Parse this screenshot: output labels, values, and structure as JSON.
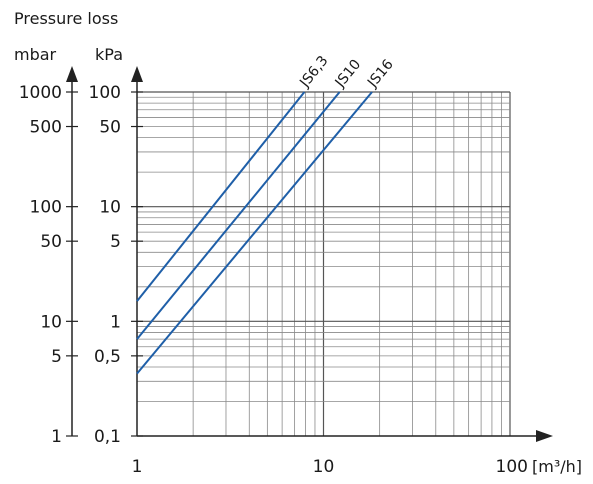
{
  "chart_data": {
    "type": "line",
    "title": "Pressure loss",
    "y_unit_left": "mbar",
    "y_unit_right": "kPa",
    "x_unit": "[m³/h]",
    "x_scale": "log",
    "y_scale": "log",
    "xlim": [
      1,
      100
    ],
    "ylim_kPa": [
      0.1,
      100
    ],
    "x_ticks": [
      {
        "value": 1,
        "label": "1"
      },
      {
        "value": 10,
        "label": "10"
      },
      {
        "value": 100,
        "label": "100"
      }
    ],
    "y_ticks_mbar": [
      {
        "value": 1000,
        "label": "1000"
      },
      {
        "value": 500,
        "label": "500"
      },
      {
        "value": 100,
        "label": "100"
      },
      {
        "value": 50,
        "label": "50"
      },
      {
        "value": 10,
        "label": "10"
      },
      {
        "value": 5,
        "label": "5"
      },
      {
        "value": 1,
        "label": "1"
      }
    ],
    "y_ticks_kPa": [
      {
        "value": 100,
        "label": "100"
      },
      {
        "value": 50,
        "label": "50"
      },
      {
        "value": 10,
        "label": "10"
      },
      {
        "value": 5,
        "label": "5"
      },
      {
        "value": 1,
        "label": "1"
      },
      {
        "value": 0.5,
        "label": "0,5"
      },
      {
        "value": 0.1,
        "label": "0,1"
      }
    ],
    "grid": true,
    "series": [
      {
        "name": "JS6,3",
        "color": "#1f5fa8",
        "points": [
          [
            1,
            1.5
          ],
          [
            7.9,
            100
          ]
        ]
      },
      {
        "name": "JS10",
        "color": "#1f5fa8",
        "points": [
          [
            1,
            0.7
          ],
          [
            12.2,
            100
          ]
        ]
      },
      {
        "name": "JS16",
        "color": "#1f5fa8",
        "points": [
          [
            1,
            0.35
          ],
          [
            18.2,
            100
          ]
        ]
      }
    ]
  }
}
